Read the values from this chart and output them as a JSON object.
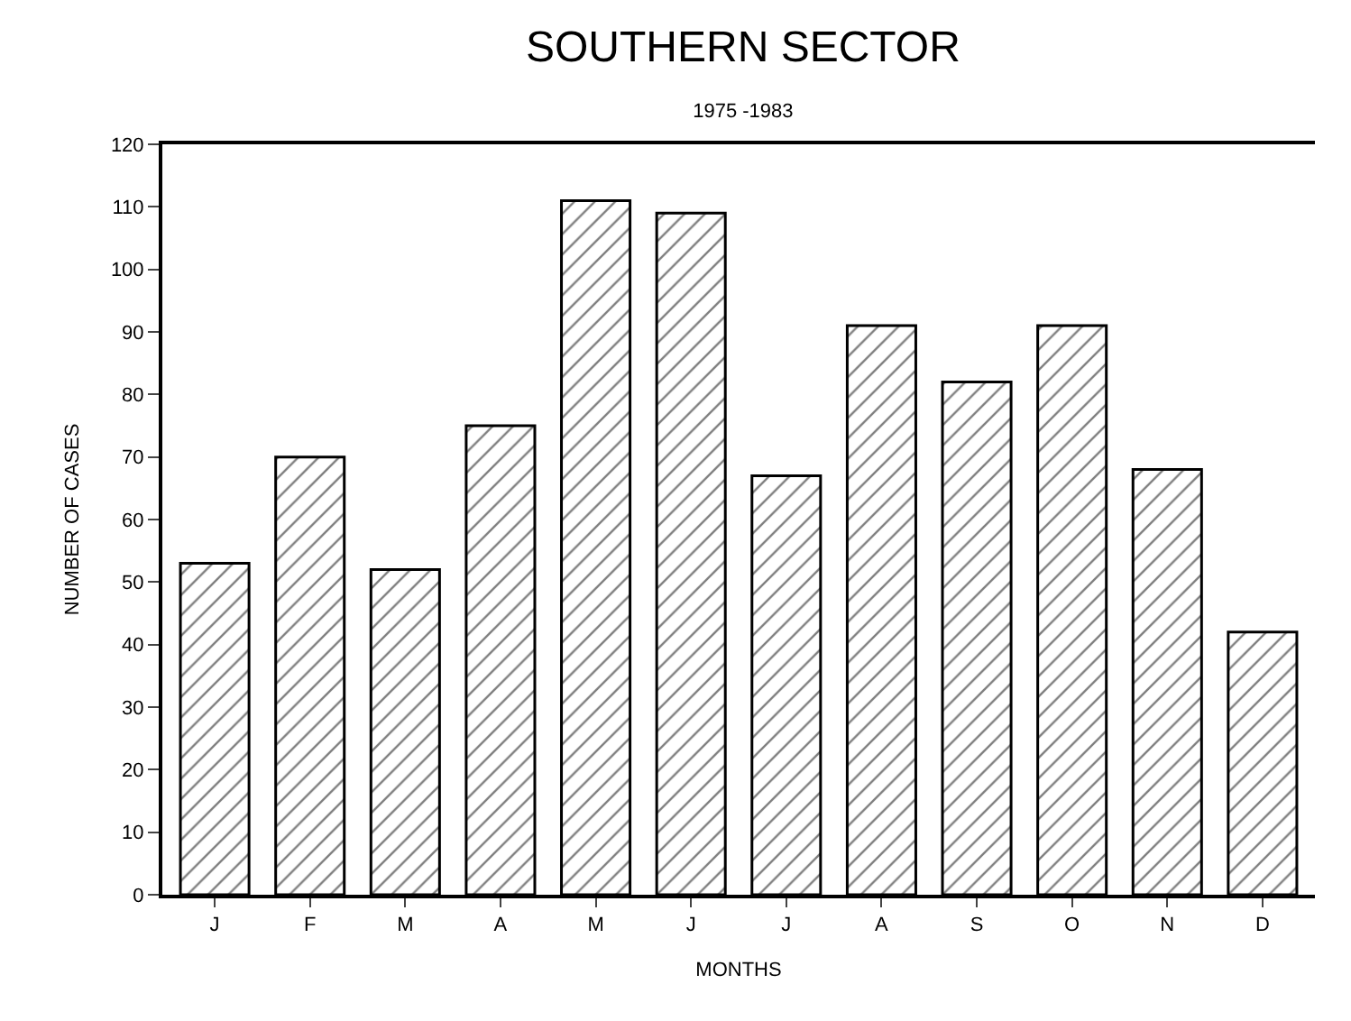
{
  "chart_data": {
    "type": "bar",
    "title": "SOUTHERN SECTOR",
    "subtitle": "1975 -1983",
    "xlabel": "MONTHS",
    "ylabel": "NUMBER OF CASES",
    "categories": [
      "J",
      "F",
      "M",
      "A",
      "M",
      "J",
      "J",
      "A",
      "S",
      "O",
      "N",
      "D"
    ],
    "values": [
      53,
      70,
      52,
      75,
      111,
      109,
      67,
      91,
      82,
      91,
      68,
      42
    ],
    "color": "#000000",
    "ylim": [
      0,
      120
    ],
    "yticks": [
      0,
      10,
      20,
      30,
      40,
      50,
      60,
      70,
      80,
      90,
      100,
      110,
      120
    ],
    "grid": false
  }
}
